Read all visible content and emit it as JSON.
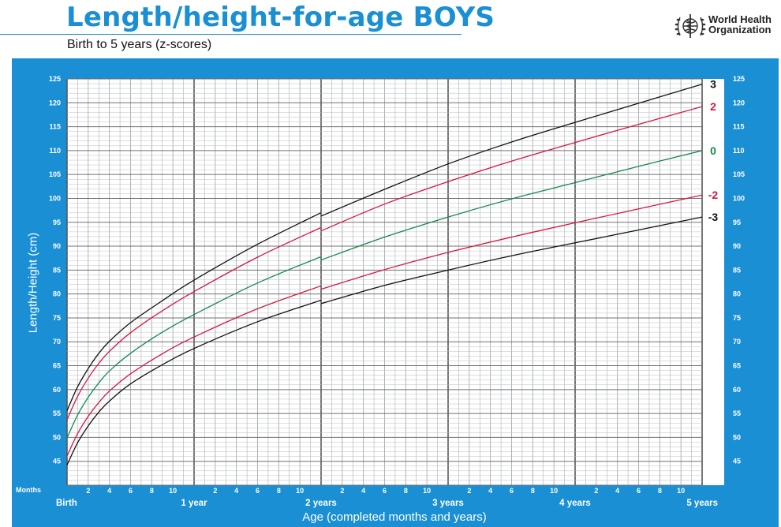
{
  "header": {
    "title": "Length/height-for-age BOYS",
    "subtitle": "Birth to 5 years (z-scores)"
  },
  "brand": {
    "org_line1": "World Health",
    "org_line2": "Organization",
    "logo_icon": "who-emblem-icon"
  },
  "colors": {
    "panel": "#1a8fd3",
    "z3": "#111111",
    "z2": "#d9173b",
    "z0": "#15894a"
  },
  "chart_data": {
    "type": "line",
    "xlabel": "Age (completed months and years)",
    "ylabel": "Length/Height (cm)",
    "xlim": [
      0,
      60
    ],
    "ylim": [
      40,
      125
    ],
    "grid": true,
    "months_label": "Months",
    "y_ticks": [
      45,
      50,
      55,
      60,
      65,
      70,
      75,
      80,
      85,
      90,
      95,
      100,
      105,
      110,
      115,
      120,
      125
    ],
    "x_minor_ticks": [
      "2",
      "4",
      "6",
      "8",
      "10"
    ],
    "x_major_labels": [
      "Birth",
      "1 year",
      "2 years",
      "3 years",
      "4 years",
      "5 years"
    ],
    "x": [
      0,
      1,
      2,
      3,
      4,
      6,
      9,
      12,
      18,
      24,
      30,
      36,
      42,
      48,
      54,
      60
    ],
    "series_break_at": 24,
    "series": [
      {
        "name": "3",
        "label_color": "#111111",
        "line": "#111111",
        "values": [
          55.6,
          60.6,
          64.4,
          67.6,
          70.1,
          74.0,
          78.6,
          82.9,
          90.4,
          97.0,
          101.9,
          107.2,
          111.8,
          115.9,
          119.9,
          123.9
        ],
        "values_after_break": [
          96.3
        ]
      },
      {
        "name": "2",
        "label_color": "#d9173b",
        "line": "#d9173b",
        "values": [
          53.7,
          58.6,
          62.4,
          65.5,
          68.0,
          71.9,
          76.5,
          80.5,
          87.7,
          93.9,
          98.8,
          103.5,
          107.8,
          111.7,
          115.5,
          119.2
        ],
        "values_after_break": [
          93.2
        ]
      },
      {
        "name": "0",
        "label_color": "#15894a",
        "line": "#15894a",
        "values": [
          49.9,
          54.7,
          58.4,
          61.4,
          63.9,
          67.6,
          72.0,
          75.7,
          82.3,
          87.8,
          91.9,
          96.1,
          99.9,
          103.3,
          106.7,
          110.0
        ],
        "values_after_break": [
          87.1
        ]
      },
      {
        "name": "-2",
        "label_color": "#d9173b",
        "line": "#d9173b",
        "values": [
          46.1,
          50.8,
          54.4,
          57.3,
          59.7,
          63.3,
          67.5,
          71.0,
          76.9,
          81.7,
          85.1,
          88.7,
          91.9,
          94.9,
          97.8,
          100.7
        ],
        "values_after_break": [
          81.0
        ]
      },
      {
        "name": "-3",
        "label_color": "#111111",
        "line": "#111111",
        "values": [
          44.2,
          48.9,
          52.4,
          55.3,
          57.6,
          61.2,
          65.2,
          68.6,
          74.2,
          78.7,
          81.8,
          85.0,
          88.0,
          90.7,
          93.4,
          96.1
        ],
        "values_after_break": [
          78.0
        ]
      }
    ]
  }
}
